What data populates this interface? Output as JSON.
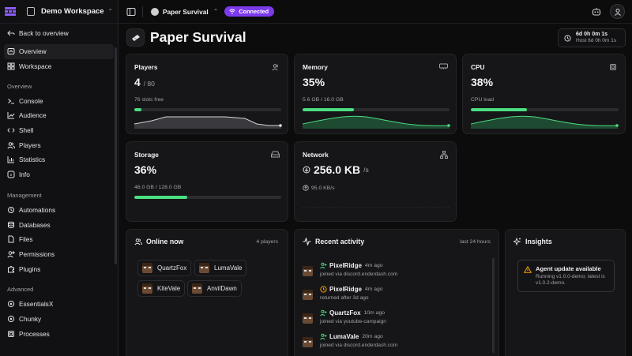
{
  "workspace": {
    "name": "Demo Workspace"
  },
  "sidebar": {
    "back_label": "Back to overview",
    "top_items": [
      {
        "label": "Overview",
        "icon": "overview-icon",
        "active": true
      },
      {
        "label": "Workspace",
        "icon": "grid-icon"
      }
    ],
    "sections": [
      {
        "title": "Overview",
        "items": [
          "Console",
          "Audience",
          "Shell",
          "Players",
          "Statistics",
          "Info"
        ]
      },
      {
        "title": "Management",
        "items": [
          "Automations",
          "Databases",
          "Files",
          "Permissions",
          "Plugins"
        ]
      },
      {
        "title": "Advanced",
        "items": [
          "EssentialsX",
          "Chunky",
          "Processes"
        ]
      }
    ]
  },
  "topbar": {
    "server_name": "Paper Survival",
    "status": "Connected"
  },
  "header": {
    "title": "Paper Survival",
    "uptime": "6d 0h 0m 1s",
    "host_uptime": "Host 6d 0h 0m 1s"
  },
  "stats": {
    "players": {
      "title": "Players",
      "value": "4",
      "max": "/ 80",
      "note": "76 slots free",
      "fill": 0.05
    },
    "memory": {
      "title": "Memory",
      "value": "35%",
      "note": "5.6 GB / 16.0 GB",
      "fill": 0.35
    },
    "cpu": {
      "title": "CPU",
      "value": "38%",
      "note": "CPU load",
      "fill": 0.38
    },
    "storage": {
      "title": "Storage",
      "value": "36%",
      "note": "46.0 GB / 128.0 GB",
      "fill": 0.36
    },
    "network": {
      "title": "Network",
      "value": "256.0 KB",
      "unit": "/s",
      "note": "95.0 KB/s"
    }
  },
  "online": {
    "title": "Online now",
    "count": "4 players",
    "players": [
      "QuartzFox",
      "LumaVale",
      "KiteVale",
      "AnvilDawn"
    ]
  },
  "activity": {
    "title": "Recent activity",
    "range": "last 24 hours",
    "items": [
      {
        "name": "PixelRidge",
        "when": "4m ago",
        "detail": "joined via discord.enderdash.com",
        "icon": "user-join-icon"
      },
      {
        "name": "PixelRidge",
        "when": "4m ago",
        "detail": "returned after 3d ago",
        "icon": "clock-icon"
      },
      {
        "name": "QuartzFox",
        "when": "10m ago",
        "detail": "joined via youtube-campaign",
        "icon": "user-join-icon"
      },
      {
        "name": "LumaVale",
        "when": "20m ago",
        "detail": "joined via discord.enderdash.com",
        "icon": "user-join-icon"
      }
    ]
  },
  "insights": {
    "title": "Insights",
    "alert_title": "Agent update available",
    "alert_text": "Running v1.0.0-demo; latest is v1.0.2-demo."
  },
  "colors": {
    "accent": "#7c3aed",
    "good": "#4ade80",
    "warning": "#f59e0b"
  }
}
